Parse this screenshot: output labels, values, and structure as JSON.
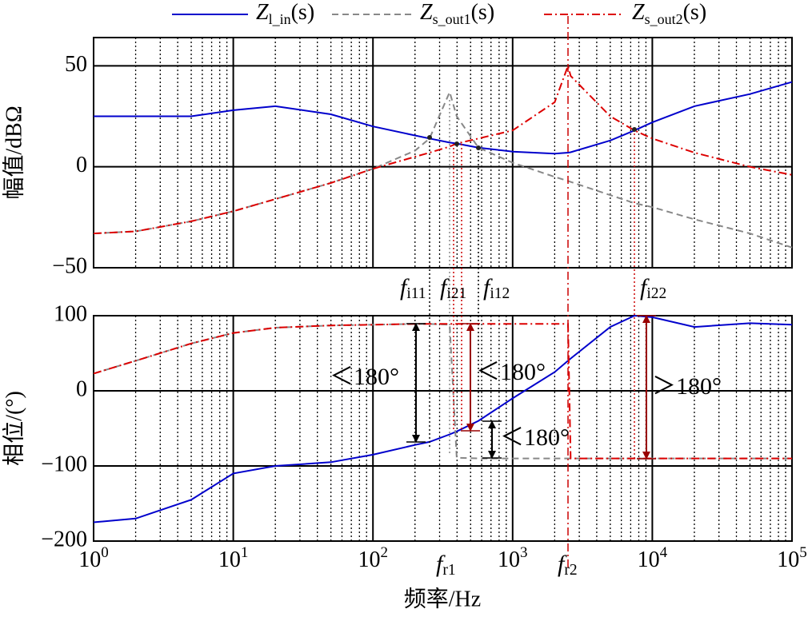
{
  "chart_data": [
    {
      "type": "line",
      "y_label": "幅值/dBΩ",
      "log_x": true,
      "grid": true,
      "x": [
        1,
        2,
        5,
        10,
        20,
        50,
        100,
        200,
        254,
        354,
        398,
        569,
        1000,
        2000,
        2490,
        2600,
        5000,
        7450,
        10000,
        20000,
        50000,
        100000
      ],
      "xlim": [
        1,
        100000
      ],
      "ylim": [
        -50,
        64
      ],
      "yticks": [
        50,
        0,
        {
          "value": -50,
          "label": "−50"
        }
      ],
      "series": [
        {
          "name": {
            "main": "Z",
            "sub": "l_in",
            "tail": "(s)"
          },
          "color": "#0000cc",
          "dash": "solid",
          "values": [
            25,
            25,
            25,
            28,
            30,
            26,
            20,
            15.5,
            14,
            12,
            11.5,
            9.5,
            7.5,
            6.5,
            7,
            7.2,
            13,
            18,
            22,
            30,
            36,
            42
          ]
        },
        {
          "name": {
            "main": "Z",
            "sub": "s_out1",
            "tail": "(s)"
          },
          "color": "#888888",
          "dash": "dash",
          "values": [
            -33,
            -32,
            -27,
            -22,
            -16,
            -8,
            -1,
            8,
            14,
            37,
            25,
            9.5,
            2,
            -5,
            -7,
            -7.5,
            -14,
            -18,
            -20,
            -26,
            -33,
            -40
          ]
        },
        {
          "name": {
            "main": "Z",
            "sub": "s_out2",
            "tail": "(s)"
          },
          "color": "#dd0000",
          "dash": "dashdot",
          "values": [
            -33,
            -32,
            -27,
            -22,
            -16,
            -8,
            -1,
            5,
            7,
            10,
            11.5,
            14,
            18,
            32,
            50,
            45,
            25,
            18,
            14,
            7,
            0,
            -4
          ]
        }
      ],
      "annotations": [
        {
          "main": "f",
          "sub": "i11",
          "color": "#000000"
        },
        {
          "main": "f",
          "sub": "i21",
          "color": "#990000"
        },
        {
          "main": "f",
          "sub": "i12",
          "color": "#000000"
        },
        {
          "main": "f",
          "sub": "i22",
          "color": "#990000"
        }
      ]
    },
    {
      "type": "line",
      "y_label": "相位/(°)",
      "x_label": "频率/Hz",
      "log_x": true,
      "grid": true,
      "x": [
        1,
        2,
        5,
        10,
        20,
        50,
        100,
        200,
        254,
        354,
        398,
        569,
        1000,
        2000,
        2490,
        2600,
        5000,
        7450,
        10000,
        20000,
        50000,
        100000
      ],
      "xlim": [
        1,
        100000
      ],
      "xticks": [
        {
          "value": 1,
          "label": "10",
          "exp": "0"
        },
        {
          "value": 10,
          "label": "10",
          "exp": "1"
        },
        {
          "value": 100,
          "label": "10",
          "exp": "2"
        },
        {
          "value": 1000,
          "label": "10",
          "exp": "3"
        },
        {
          "value": 10000,
          "label": "10",
          "exp": "4"
        },
        {
          "value": 100000,
          "label": "10",
          "exp": "5"
        }
      ],
      "ylim": [
        -200,
        100
      ],
      "yticks": [
        100,
        0,
        {
          "value": -100,
          "label": "−100"
        },
        {
          "value": -200,
          "label": "−200"
        }
      ],
      "series": [
        {
          "color": "#0000cc",
          "dash": "solid",
          "values": [
            -175,
            -170,
            -145,
            -110,
            -100,
            -95,
            -85,
            -72,
            -68,
            -58,
            -54,
            -40,
            -10,
            25,
            40,
            43,
            85,
            100,
            98,
            85,
            90,
            88
          ]
        },
        {
          "color": "#888888",
          "dash": "dash",
          "values": [
            23,
            40,
            63,
            77,
            84,
            87,
            88,
            89,
            89,
            88,
            -89,
            -90,
            -90,
            -90,
            -90,
            -90,
            -90,
            -90,
            -90,
            -90,
            -90,
            -90
          ]
        },
        {
          "color": "#dd0000",
          "dash": "dashdot",
          "values": [
            23,
            40,
            63,
            77,
            84,
            87,
            88,
            89,
            89,
            89,
            89,
            89,
            89,
            89,
            89,
            -90,
            -90,
            -90,
            -90,
            -90,
            -90,
            -90
          ]
        }
      ],
      "annotations": [
        {
          "main": "f",
          "sub": "r1",
          "color": "#000000"
        },
        {
          "main": "f",
          "sub": "r2",
          "color": "#990000"
        },
        {
          "text": "＜180°",
          "color": "#000000"
        },
        {
          "text": "＜180°",
          "color": "#990000"
        },
        {
          "text": "＜180°",
          "color": "#000000"
        },
        {
          "text": "＞180°",
          "color": "#990000"
        }
      ]
    }
  ]
}
